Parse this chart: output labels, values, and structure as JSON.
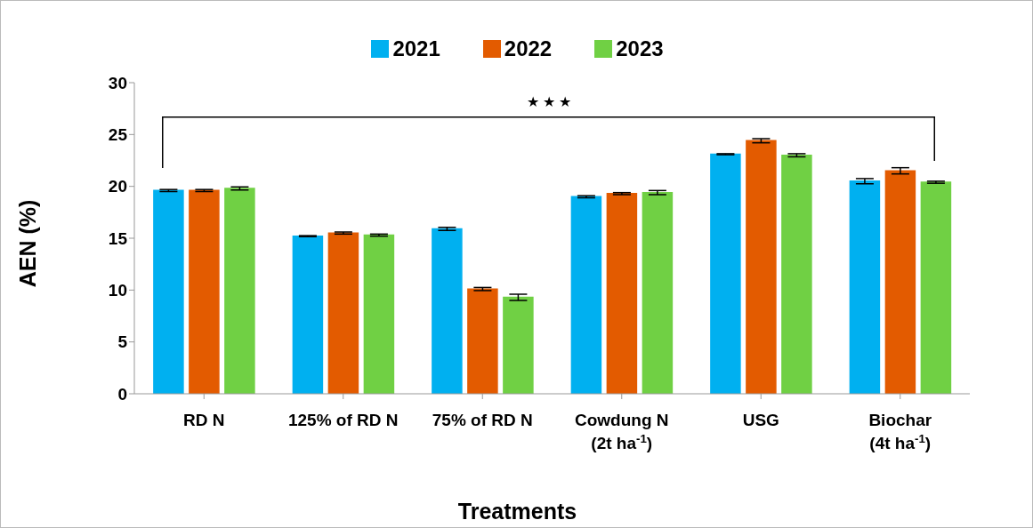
{
  "chart_data": {
    "type": "bar",
    "xlabel": "Treatments",
    "ylabel": "AEN (%)",
    "categories": [
      "RD N",
      "125% of RD N",
      "75% of RD N",
      "Cowdung N\n(2t ha$^{-1}$)",
      "USG",
      "Biochar\n(4t ha$^{-1}$)"
    ],
    "series": [
      {
        "name": "2021",
        "color": "#00b0f0",
        "values": [
          19.6,
          15.2,
          15.9,
          19.0,
          23.1,
          20.5
        ],
        "errors": [
          0.1,
          0.05,
          0.15,
          0.1,
          0.05,
          0.25
        ]
      },
      {
        "name": "2022",
        "color": "#e35b00",
        "values": [
          19.6,
          15.5,
          10.1,
          19.3,
          24.4,
          21.5
        ],
        "errors": [
          0.1,
          0.1,
          0.15,
          0.1,
          0.2,
          0.3
        ]
      },
      {
        "name": "2023",
        "color": "#70d044",
        "values": [
          19.8,
          15.3,
          9.3,
          19.4,
          23.0,
          20.4
        ],
        "errors": [
          0.15,
          0.1,
          0.3,
          0.2,
          0.15,
          0.1
        ]
      }
    ],
    "ylim": [
      0,
      30
    ],
    "yticks": [
      0,
      5,
      10,
      15,
      20,
      25,
      30
    ],
    "annotations": [
      "★ ★ ★"
    ],
    "legend": "top"
  }
}
